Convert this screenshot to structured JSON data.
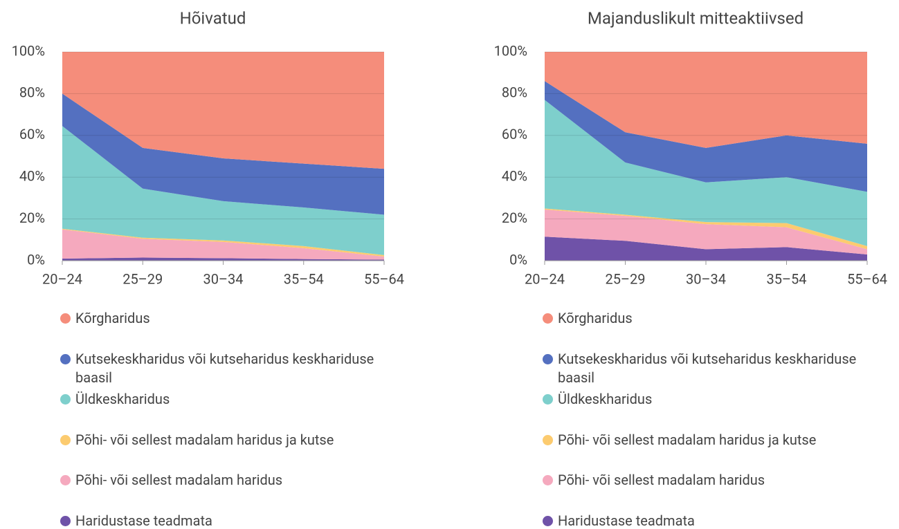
{
  "chart_data": [
    {
      "type": "stacked_area",
      "title": "Hõivatud",
      "categories": [
        "20–24",
        "25–29",
        "30–34",
        "35–54",
        "55–64"
      ],
      "ylim": [
        0,
        100
      ],
      "yticks": [
        {
          "value": 0,
          "label": "0%"
        },
        {
          "value": 20,
          "label": "20%"
        },
        {
          "value": 40,
          "label": "40%"
        },
        {
          "value": 60,
          "label": "60%"
        },
        {
          "value": 80,
          "label": "80%"
        },
        {
          "value": 100,
          "label": "100%"
        }
      ],
      "series": [
        {
          "name": "Kõrgharidus",
          "color": "#f58d7b",
          "values": [
            20,
            46,
            51,
            53.5,
            56
          ]
        },
        {
          "name": "Kutsekeskharidus või kutseharidus keskhariduse baasil",
          "color": "#5470c0",
          "values": [
            15.5,
            19.5,
            20.5,
            21,
            22
          ]
        },
        {
          "name": "Üldkeskharidus",
          "color": "#7ecfcc",
          "values": [
            49.2,
            23.5,
            18.8,
            18.5,
            19.3
          ]
        },
        {
          "name": "Põhi- või sellest madalam haridus ja kutse",
          "color": "#fccb6f",
          "values": [
            0.3,
            0.5,
            0.7,
            1,
            0.7
          ]
        },
        {
          "name": "Põhi- või sellest madalam haridus",
          "color": "#f5a9be",
          "values": [
            14,
            9,
            7.8,
            5.2,
            1.5
          ]
        },
        {
          "name": "Haridustase teadmata",
          "color": "#6f52a8",
          "values": [
            1,
            1.5,
            1.2,
            0.8,
            0.5
          ]
        }
      ]
    },
    {
      "type": "stacked_area",
      "title": "Majanduslikult mitteaktiivsed",
      "categories": [
        "20–24",
        "25–29",
        "30–34",
        "35–54",
        "55–64"
      ],
      "ylim": [
        0,
        100
      ],
      "yticks": [
        {
          "value": 0,
          "label": "0%"
        },
        {
          "value": 20,
          "label": "20%"
        },
        {
          "value": 40,
          "label": "40%"
        },
        {
          "value": 60,
          "label": "60%"
        },
        {
          "value": 80,
          "label": "80%"
        },
        {
          "value": 100,
          "label": "100%"
        }
      ],
      "series": [
        {
          "name": "Kõrgharidus",
          "color": "#f58d7b",
          "values": [
            14,
            38.5,
            46,
            40,
            44
          ]
        },
        {
          "name": "Kutsekeskharidus või kutseharidus keskhariduse baasil",
          "color": "#5470c0",
          "values": [
            9,
            14.5,
            16.5,
            20,
            23
          ]
        },
        {
          "name": "Üldkeskharidus",
          "color": "#7ecfcc",
          "values": [
            52,
            25,
            19,
            22,
            26
          ]
        },
        {
          "name": "Põhi- või sellest madalam haridus ja kutse",
          "color": "#fccb6f",
          "values": [
            0.5,
            0.5,
            1,
            2,
            1.5
          ]
        },
        {
          "name": "Põhi- või sellest madalam haridus",
          "color": "#f5a9be",
          "values": [
            13,
            12,
            12,
            9.5,
            2.5
          ]
        },
        {
          "name": "Haridustase teadmata",
          "color": "#6f52a8",
          "values": [
            11.5,
            9.5,
            5.5,
            6.5,
            3
          ]
        }
      ]
    }
  ]
}
